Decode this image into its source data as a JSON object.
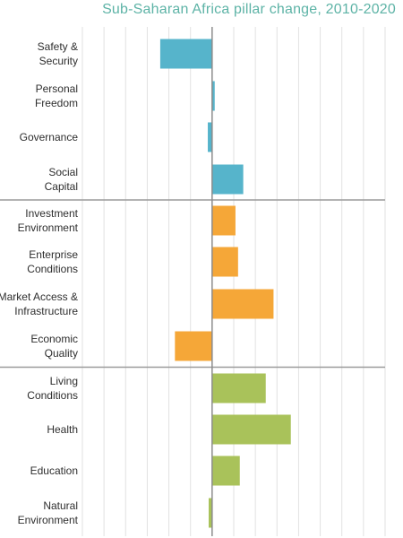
{
  "chart_data": {
    "type": "bar",
    "orientation": "horizontal",
    "title": "Sub-Saharan Africa pillar change, 2010-2020",
    "xlabel": "",
    "ylabel": "",
    "grid": true,
    "xlim": [
      -0.15,
      0.2
    ],
    "x_gridlines": [
      -0.15,
      -0.125,
      -0.1,
      -0.075,
      -0.05,
      -0.025,
      0,
      0.025,
      0.05,
      0.075,
      0.1,
      0.125,
      0.15,
      0.175,
      0.2
    ],
    "groups": [
      {
        "color": "#56b4cb",
        "items": [
          {
            "label": [
              "Safety &",
              "Security"
            ],
            "value": -0.06
          },
          {
            "label": [
              "Personal",
              "Freedom"
            ],
            "value": 0.003
          },
          {
            "label": [
              "Governance"
            ],
            "value": -0.005
          },
          {
            "label": [
              "Social",
              "Capital"
            ],
            "value": 0.036
          }
        ]
      },
      {
        "color": "#f5a738",
        "items": [
          {
            "label": [
              "Investment",
              "Environment"
            ],
            "value": 0.027
          },
          {
            "label": [
              "Enterprise",
              "Conditions"
            ],
            "value": 0.03
          },
          {
            "label": [
              "Market Access &",
              "Infrastructure"
            ],
            "value": 0.071
          },
          {
            "label": [
              "Economic",
              "Quality"
            ],
            "value": -0.043
          }
        ]
      },
      {
        "color": "#a9c25a",
        "items": [
          {
            "label": [
              "Living",
              "Conditions"
            ],
            "value": 0.062
          },
          {
            "label": [
              "Health"
            ],
            "value": 0.091
          },
          {
            "label": [
              "Education"
            ],
            "value": 0.032
          },
          {
            "label": [
              "Natural",
              "Environment"
            ],
            "value": -0.004
          }
        ]
      }
    ]
  }
}
